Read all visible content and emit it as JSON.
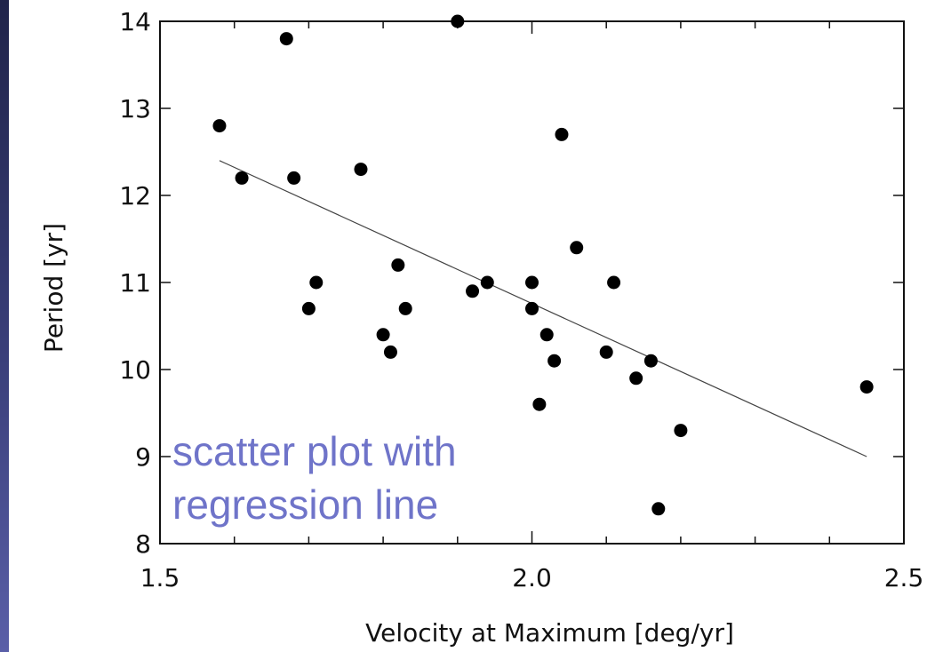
{
  "chart_data": {
    "type": "scatter",
    "xlabel": "Velocity at Maximum [deg/yr]",
    "ylabel": "Period [yr]",
    "xlim": [
      1.5,
      2.5
    ],
    "ylim": [
      8,
      14
    ],
    "x_ticks": [
      "1.5",
      "2.0",
      "2.5"
    ],
    "y_ticks": [
      "8",
      "9",
      "10",
      "11",
      "12",
      "13",
      "14"
    ],
    "points": [
      {
        "x": 1.58,
        "y": 12.8
      },
      {
        "x": 1.61,
        "y": 12.2
      },
      {
        "x": 1.67,
        "y": 13.8
      },
      {
        "x": 1.68,
        "y": 12.2
      },
      {
        "x": 1.7,
        "y": 10.7
      },
      {
        "x": 1.71,
        "y": 11.0
      },
      {
        "x": 1.77,
        "y": 12.3
      },
      {
        "x": 1.8,
        "y": 10.4
      },
      {
        "x": 1.81,
        "y": 10.2
      },
      {
        "x": 1.82,
        "y": 11.2
      },
      {
        "x": 1.83,
        "y": 10.7
      },
      {
        "x": 1.9,
        "y": 14.0
      },
      {
        "x": 1.92,
        "y": 10.9
      },
      {
        "x": 1.94,
        "y": 11.0
      },
      {
        "x": 2.0,
        "y": 11.0
      },
      {
        "x": 2.0,
        "y": 10.7
      },
      {
        "x": 2.01,
        "y": 9.6
      },
      {
        "x": 2.02,
        "y": 10.4
      },
      {
        "x": 2.03,
        "y": 10.1
      },
      {
        "x": 2.04,
        "y": 12.7
      },
      {
        "x": 2.06,
        "y": 11.4
      },
      {
        "x": 2.1,
        "y": 10.2
      },
      {
        "x": 2.11,
        "y": 11.0
      },
      {
        "x": 2.14,
        "y": 9.9
      },
      {
        "x": 2.16,
        "y": 10.1
      },
      {
        "x": 2.17,
        "y": 8.4
      },
      {
        "x": 2.2,
        "y": 9.3
      },
      {
        "x": 2.45,
        "y": 9.8
      }
    ],
    "regression_line": {
      "x": [
        1.58,
        2.45
      ],
      "y": [
        12.4,
        9.0
      ]
    },
    "annotation": [
      "scatter plot with",
      "regression line"
    ]
  }
}
